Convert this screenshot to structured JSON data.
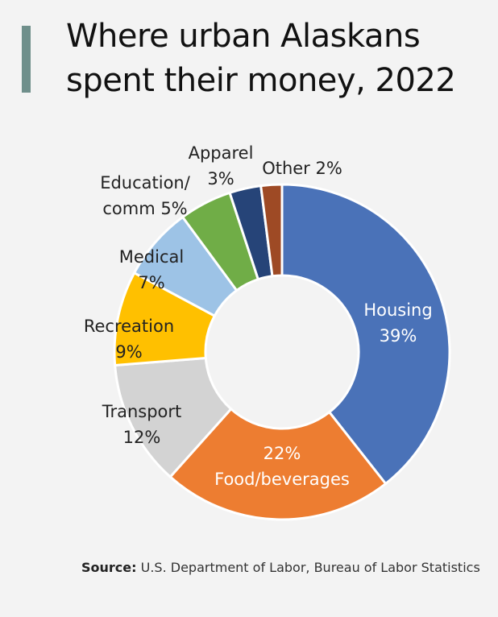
{
  "title": {
    "line1": "Where urban Alaskans",
    "line2": "spent their money, 2022"
  },
  "source": {
    "label": "Source:",
    "text": "U.S. Department of Labor, Bureau of Labor Statistics"
  },
  "chart_data": {
    "type": "pie",
    "subtype": "donut",
    "title": "Where urban Alaskans spent their money, 2022",
    "slices": [
      {
        "category": "Housing",
        "value": 39,
        "color": "#4a72b8",
        "label_lines": [
          "Housing",
          "39%"
        ],
        "label_color": "#ffffff"
      },
      {
        "category": "Food/beverages",
        "value": 22,
        "color": "#ed7d31",
        "label_lines": [
          "22%",
          "Food/beverages"
        ],
        "label_color": "#ffffff"
      },
      {
        "category": "Transport",
        "value": 12,
        "color": "#d3d3d3",
        "label_lines": [
          "Transport",
          "12%"
        ],
        "label_color": "#222222"
      },
      {
        "category": "Recreation",
        "value": 9,
        "color": "#ffc000",
        "label_lines": [
          "Recreation",
          "9%"
        ],
        "label_color": "#222222"
      },
      {
        "category": "Medical",
        "value": 7,
        "color": "#9dc3e6",
        "label_lines": [
          "Medical",
          "7%"
        ],
        "label_color": "#222222"
      },
      {
        "category": "Education/ comm",
        "value": 5,
        "color": "#70ad47",
        "label_lines": [
          "Education/",
          "comm  5%"
        ],
        "label_color": "#222222"
      },
      {
        "category": "Apparel",
        "value": 3,
        "color": "#264478",
        "label_lines": [
          "Apparel",
          "3%"
        ],
        "label_color": "#222222"
      },
      {
        "category": "Other",
        "value": 2,
        "color": "#9e4a25",
        "label_lines": [
          "Other 2%"
        ],
        "label_color": "#222222"
      }
    ],
    "legend": "none"
  }
}
